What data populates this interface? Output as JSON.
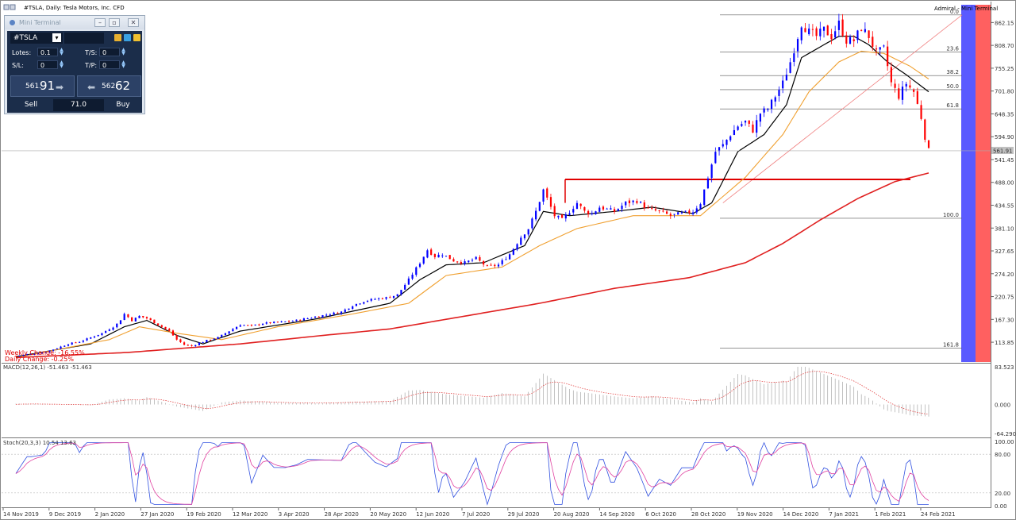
{
  "window": {
    "chart_title": "#TSLA, Daily:  Tesla Motors, Inc.  CFD",
    "watermark": "Admiral - Mini Terminal"
  },
  "mini_terminal": {
    "title": "Mini Terminal",
    "symbol": "#TSLA",
    "lots_label": "Lotes:",
    "lots_value": "0.1",
    "sl_label": "S/L:",
    "sl_value": "0",
    "ts_label": "T/S:",
    "ts_value": "0",
    "tp_label": "T/P:",
    "tp_value": "0",
    "sell_price_small": "561.",
    "sell_price_big": "91",
    "buy_price_small": "562.",
    "buy_price_big": "62",
    "sell_label": "Sell",
    "buy_label": "Buy",
    "spread": "71.0"
  },
  "overlay_text": {
    "weekly_change": "Weekly Change: -16.55%",
    "daily_change": "Daily Change: -0.25%"
  },
  "colors": {
    "up_candle": "#0000ff",
    "down_candle": "#ff0000",
    "sma_fast": "#000000",
    "sma_mid": "#f0a030",
    "sma_slow": "#e02020",
    "resistance": "#e00000",
    "right_band_blue": "#5a5aff",
    "right_band_red": "#ff6060"
  },
  "chart_data": [
    {
      "type": "candlestick",
      "title": "#TSLA, Daily:  Tesla Motors, Inc.  CFD",
      "price_ticks": [
        "862.15",
        "808.70",
        "755.25",
        "701.80",
        "648.35",
        "594.90",
        "541.45",
        "488.00",
        "434.55",
        "381.10",
        "327.65",
        "274.20",
        "220.75",
        "167.30",
        "113.85"
      ],
      "current_price": "561.91",
      "ylim": [
        75,
        900
      ],
      "x_ticks": [
        "14 Nov 2019",
        "9 Dec 2019",
        "2 Jan 2020",
        "27 Jan 2020",
        "19 Feb 2020",
        "12 Mar 2020",
        "3 Apr 2020",
        "28 Apr 2020",
        "20 May 2020",
        "12 Jun 2020",
        "7 Jul 2020",
        "29 Jul 2020",
        "20 Aug 2020",
        "14 Sep 2020",
        "6 Oct 2020",
        "28 Oct 2020",
        "19 Nov 2020",
        "14 Dec 2020",
        "7 Jan 2021",
        "1 Feb 2021",
        "24 Feb 2021"
      ],
      "fibonacci_levels": [
        {
          "label": "0.0",
          "price": 880
        },
        {
          "label": "23.6",
          "price": 793
        },
        {
          "label": "38.2",
          "price": 738
        },
        {
          "label": "50.0",
          "price": 705
        },
        {
          "label": "61.8",
          "price": 660
        },
        {
          "label": "100.0",
          "price": 404
        },
        {
          "label": "161.8",
          "price": 100
        }
      ],
      "resistance_level": 495,
      "series_close": [
        {
          "name": "close",
          "points": [
            [
              0,
              82
            ],
            [
              8,
              86
            ],
            [
              15,
              90
            ],
            [
              22,
              100
            ],
            [
              28,
              110
            ],
            [
              34,
              115
            ],
            [
              40,
              125
            ],
            [
              46,
              135
            ],
            [
              52,
              150
            ],
            [
              55,
              160
            ],
            [
              58,
              180
            ],
            [
              62,
              165
            ],
            [
              66,
              175
            ],
            [
              70,
              170
            ],
            [
              74,
              160
            ],
            [
              78,
              150
            ],
            [
              82,
              140
            ],
            [
              86,
              120
            ],
            [
              90,
              108
            ],
            [
              94,
              105
            ],
            [
              98,
              112
            ],
            [
              102,
              118
            ],
            [
              108,
              125
            ],
            [
              114,
              140
            ],
            [
              120,
              155
            ],
            [
              126,
              152
            ],
            [
              132,
              158
            ],
            [
              138,
              160
            ],
            [
              144,
              162
            ],
            [
              150,
              165
            ],
            [
              156,
              170
            ],
            [
              162,
              175
            ],
            [
              168,
              180
            ],
            [
              174,
              185
            ],
            [
              180,
              200
            ],
            [
              186,
              210
            ],
            [
              192,
              215
            ],
            [
              198,
              218
            ],
            [
              204,
              225
            ],
            [
              210,
              260
            ],
            [
              216,
              300
            ],
            [
              220,
              330
            ],
            [
              224,
              315
            ],
            [
              228,
              320
            ],
            [
              234,
              305
            ],
            [
              240,
              300
            ],
            [
              246,
              310
            ],
            [
              252,
              290
            ],
            [
              258,
              295
            ],
            [
              264,
              320
            ],
            [
              270,
              360
            ],
            [
              274,
              380
            ],
            [
              278,
              420
            ],
            [
              282,
              470
            ],
            [
              285,
              440
            ],
            [
              288,
              410
            ],
            [
              292,
              400
            ],
            [
              296,
              420
            ],
            [
              300,
              440
            ],
            [
              304,
              420
            ],
            [
              308,
              415
            ],
            [
              312,
              430
            ],
            [
              316,
              425
            ],
            [
              320,
              420
            ],
            [
              326,
              440
            ],
            [
              332,
              445
            ],
            [
              338,
              425
            ],
            [
              344,
              420
            ],
            [
              350,
              410
            ],
            [
              356,
              415
            ],
            [
              362,
              420
            ],
            [
              366,
              440
            ],
            [
              370,
              500
            ],
            [
              374,
              560
            ],
            [
              378,
              575
            ],
            [
              382,
              600
            ],
            [
              386,
              620
            ],
            [
              390,
              630
            ],
            [
              394,
              610
            ],
            [
              398,
              650
            ],
            [
              402,
              660
            ],
            [
              406,
              690
            ],
            [
              410,
              720
            ],
            [
              414,
              770
            ],
            [
              418,
              830
            ],
            [
              420,
              860
            ],
            [
              424,
              840
            ],
            [
              428,
              830
            ],
            [
              432,
              845
            ],
            [
              436,
              830
            ],
            [
              440,
              860
            ],
            [
              444,
              820
            ],
            [
              448,
              820
            ],
            [
              452,
              850
            ],
            [
              456,
              830
            ],
            [
              460,
              790
            ],
            [
              464,
              800
            ],
            [
              468,
              720
            ],
            [
              472,
              690
            ],
            [
              476,
              720
            ],
            [
              480,
              700
            ],
            [
              484,
              640
            ],
            [
              486,
              595
            ],
            [
              488,
              562
            ]
          ]
        }
      ],
      "series_ma": [
        {
          "name": "fast",
          "points": [
            [
              0,
              80
            ],
            [
              40,
              110
            ],
            [
              58,
              150
            ],
            [
              70,
              165
            ],
            [
              86,
              130
            ],
            [
              100,
              110
            ],
            [
              120,
              140
            ],
            [
              160,
              168
            ],
            [
              200,
              205
            ],
            [
              216,
              260
            ],
            [
              230,
              295
            ],
            [
              250,
              300
            ],
            [
              272,
              340
            ],
            [
              282,
              420
            ],
            [
              296,
              410
            ],
            [
              320,
              420
            ],
            [
              340,
              430
            ],
            [
              362,
              415
            ],
            [
              372,
              440
            ],
            [
              386,
              560
            ],
            [
              400,
              600
            ],
            [
              412,
              670
            ],
            [
              420,
              780
            ],
            [
              432,
              810
            ],
            [
              440,
              830
            ],
            [
              448,
              830
            ],
            [
              456,
              810
            ],
            [
              466,
              770
            ],
            [
              476,
              740
            ],
            [
              488,
              700
            ]
          ]
        },
        {
          "name": "mid",
          "points": [
            [
              0,
              78
            ],
            [
              50,
              120
            ],
            [
              66,
              150
            ],
            [
              86,
              135
            ],
            [
              110,
              120
            ],
            [
              140,
              150
            ],
            [
              180,
              180
            ],
            [
              210,
              205
            ],
            [
              230,
              270
            ],
            [
              260,
              290
            ],
            [
              280,
              340
            ],
            [
              300,
              380
            ],
            [
              330,
              410
            ],
            [
              366,
              410
            ],
            [
              390,
              500
            ],
            [
              410,
              600
            ],
            [
              424,
              700
            ],
            [
              440,
              770
            ],
            [
              452,
              795
            ],
            [
              464,
              790
            ],
            [
              478,
              760
            ],
            [
              488,
              730
            ]
          ]
        },
        {
          "name": "slow",
          "points": [
            [
              0,
              78
            ],
            [
              60,
              90
            ],
            [
              120,
              110
            ],
            [
              160,
              128
            ],
            [
              200,
              145
            ],
            [
              240,
              175
            ],
            [
              280,
              205
            ],
            [
              320,
              240
            ],
            [
              360,
              265
            ],
            [
              390,
              300
            ],
            [
              410,
              345
            ],
            [
              430,
              400
            ],
            [
              450,
              450
            ],
            [
              470,
              490
            ],
            [
              488,
              510
            ]
          ]
        }
      ]
    },
    {
      "type": "histogram",
      "title": "MACD(12,26,1) -51.463 -51.463",
      "y_ticks": [
        "83.523",
        "0.000",
        "-64.290"
      ],
      "ylim": [
        -64.29,
        83.523
      ]
    },
    {
      "type": "line",
      "title": "Stoch(20,3,3) 10.54 13.63",
      "y_ticks": [
        "100.00",
        "80.00",
        "20.00",
        "0.00"
      ],
      "ylim": [
        0,
        100
      ]
    }
  ]
}
